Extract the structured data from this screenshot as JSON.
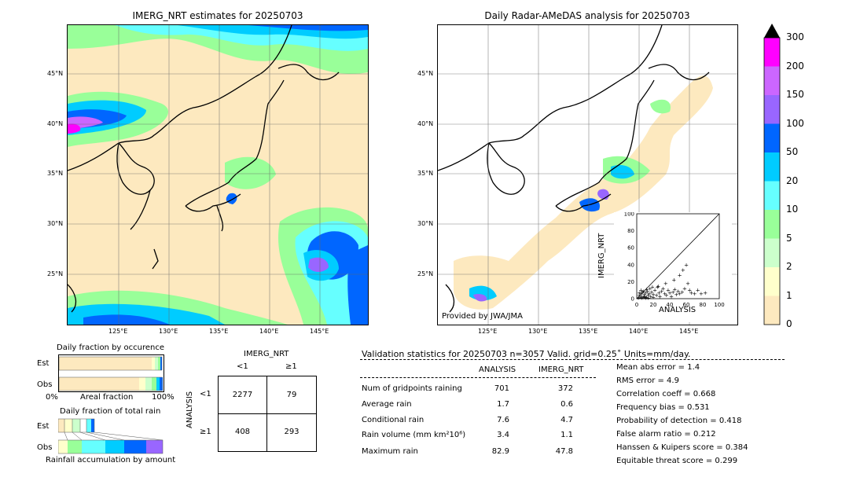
{
  "left_map": {
    "title": "IMERG_NRT estimates for 20250703",
    "lat_labels": [
      "45°N",
      "40°N",
      "35°N",
      "30°N",
      "25°N"
    ],
    "lon_labels": [
      "125°E",
      "130°E",
      "135°E",
      "140°E",
      "145°E"
    ]
  },
  "right_map": {
    "title": "Daily Radar-AMeDAS analysis for 20250703",
    "lat_labels": [
      "45°N",
      "40°N",
      "35°N",
      "30°N",
      "25°N"
    ],
    "lon_labels": [
      "125°E",
      "130°E",
      "135°E",
      "140°E",
      "145°E"
    ],
    "credit": "Provided by JWA/JMA"
  },
  "colorbar": {
    "labels": [
      "0",
      "1",
      "2",
      "5",
      "10",
      "20",
      "50",
      "100",
      "150",
      "200",
      "300"
    ],
    "colors": [
      "#fde9bf",
      "#ffffcc",
      "#ccffcc",
      "#99ff99",
      "#66ffff",
      "#00ccff",
      "#0066ff",
      "#9966ff",
      "#cc66ff",
      "#ff00ff",
      "#cc9933"
    ]
  },
  "scatter": {
    "xlabel": "ANALYSIS",
    "ylabel": "IMERG_NRT",
    "ticks": [
      "0",
      "20",
      "40",
      "60",
      "80",
      "100"
    ]
  },
  "fraction_occurrence": {
    "title": "Daily fraction by occurence",
    "row_est": "Est",
    "row_obs": "Obs",
    "axis_left": "0%",
    "axis_mid": "Areal fraction",
    "axis_right": "100%"
  },
  "fraction_rain": {
    "title": "Daily fraction of total rain",
    "row_est": "Est",
    "row_obs": "Obs",
    "caption": "Rainfall accumulation by amount"
  },
  "contingency": {
    "title": "IMERG_NRT",
    "col_lt": "<1",
    "col_ge": "≥1",
    "row_axis": "ANALYSIS",
    "row_lt": "<1",
    "row_ge": "≥1",
    "a": "2277",
    "b": "79",
    "c": "408",
    "d": "293"
  },
  "validation": {
    "header": "Validation statistics for 20250703  n=3057 Valid. grid=0.25˚ Units=mm/day.",
    "col_analysis": "ANALYSIS",
    "col_imerg": "IMERG_NRT",
    "rows": [
      {
        "label": "Num of gridpoints raining",
        "analysis": "701",
        "imerg": "372"
      },
      {
        "label": "Average rain",
        "analysis": "1.7",
        "imerg": "0.6"
      },
      {
        "label": "Conditional rain",
        "analysis": "7.6",
        "imerg": "4.7"
      },
      {
        "label": "Rain volume (mm km²10⁶)",
        "analysis": "3.4",
        "imerg": "1.1"
      },
      {
        "label": "Maximum rain",
        "analysis": "82.9",
        "imerg": "47.8"
      }
    ],
    "scores": [
      "Mean abs error =    1.4",
      "RMS error =    4.9",
      "Correlation coeff =  0.668",
      "Frequency bias =  0.531",
      "Probability of detection =  0.418",
      "False alarm ratio =  0.212",
      "Hanssen & Kuipers score =  0.384",
      "Equitable threat score =  0.299"
    ]
  },
  "chart_data": {
    "type": "scatter",
    "xlabel": "ANALYSIS",
    "ylabel": "IMERG_NRT",
    "xlim": [
      0,
      100
    ],
    "ylim": [
      0,
      100
    ],
    "points": [
      [
        2,
        1
      ],
      [
        3,
        4
      ],
      [
        4,
        2
      ],
      [
        5,
        6
      ],
      [
        6,
        3
      ],
      [
        7,
        8
      ],
      [
        8,
        2
      ],
      [
        9,
        5
      ],
      [
        10,
        3
      ],
      [
        11,
        7
      ],
      [
        12,
        2
      ],
      [
        13,
        9
      ],
      [
        14,
        4
      ],
      [
        15,
        6
      ],
      [
        16,
        12
      ],
      [
        17,
        3
      ],
      [
        18,
        8
      ],
      [
        20,
        5
      ],
      [
        22,
        10
      ],
      [
        24,
        4
      ],
      [
        25,
        14
      ],
      [
        27,
        7
      ],
      [
        28,
        3
      ],
      [
        30,
        9
      ],
      [
        32,
        12
      ],
      [
        34,
        6
      ],
      [
        36,
        4
      ],
      [
        38,
        10
      ],
      [
        40,
        7
      ],
      [
        42,
        3
      ],
      [
        44,
        8
      ],
      [
        46,
        11
      ],
      [
        48,
        5
      ],
      [
        50,
        9
      ],
      [
        52,
        6
      ],
      [
        55,
        8
      ],
      [
        58,
        12
      ],
      [
        60,
        40
      ],
      [
        62,
        18
      ],
      [
        64,
        10
      ],
      [
        66,
        7
      ],
      [
        70,
        6
      ],
      [
        74,
        10
      ],
      [
        78,
        6
      ],
      [
        83,
        7
      ],
      [
        52,
        28
      ],
      [
        56,
        34
      ],
      [
        45,
        22
      ],
      [
        35,
        18
      ],
      [
        26,
        15
      ],
      [
        19,
        14
      ],
      [
        12,
        11
      ],
      [
        8,
        9
      ],
      [
        5,
        10
      ],
      [
        3,
        7
      ],
      [
        6,
        1
      ],
      [
        9,
        2
      ],
      [
        11,
        1
      ],
      [
        14,
        1
      ],
      [
        20,
        2
      ]
    ]
  }
}
